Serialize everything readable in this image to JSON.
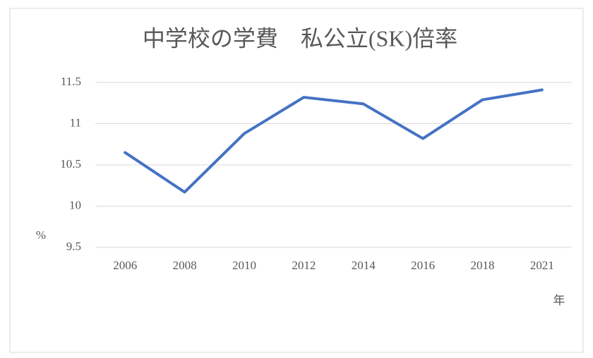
{
  "chart_data": {
    "type": "line",
    "title": "中学校の学費　私公立(SK)倍率",
    "y_label": "%",
    "x_label": "年",
    "categories": [
      "2006",
      "2008",
      "2010",
      "2012",
      "2014",
      "2016",
      "2018",
      "2021"
    ],
    "values": [
      10.65,
      10.17,
      10.88,
      11.32,
      11.24,
      10.82,
      11.29,
      11.41
    ],
    "color": "#4472c4",
    "ylim": [
      9.5,
      11.5
    ],
    "yticks": [
      9.5,
      10,
      10.5,
      11,
      11.5
    ],
    "grid": true
  }
}
